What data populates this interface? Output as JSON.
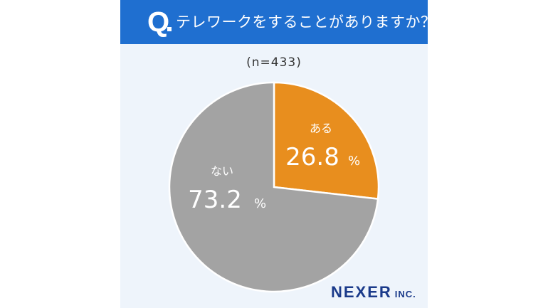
{
  "question": {
    "mark": "Q",
    "text": "テレワークをすることがありますか？"
  },
  "sample_label": "(n=433)",
  "brand": {
    "name": "NEXER",
    "suffix": "INC."
  },
  "colors": {
    "header": "#1f6fd0",
    "background": "#eef4fb",
    "yes": "#e88e1e",
    "no": "#a3a3a3"
  },
  "chart_data": {
    "type": "pie",
    "title": "テレワークをすることがありますか？",
    "slices": [
      {
        "label": "ある",
        "value": 26.8,
        "display": "26.8",
        "unit": "%",
        "color": "#e88e1e"
      },
      {
        "label": "ない",
        "value": 73.2,
        "display": "73.2",
        "unit": "%",
        "color": "#a3a3a3"
      }
    ]
  }
}
